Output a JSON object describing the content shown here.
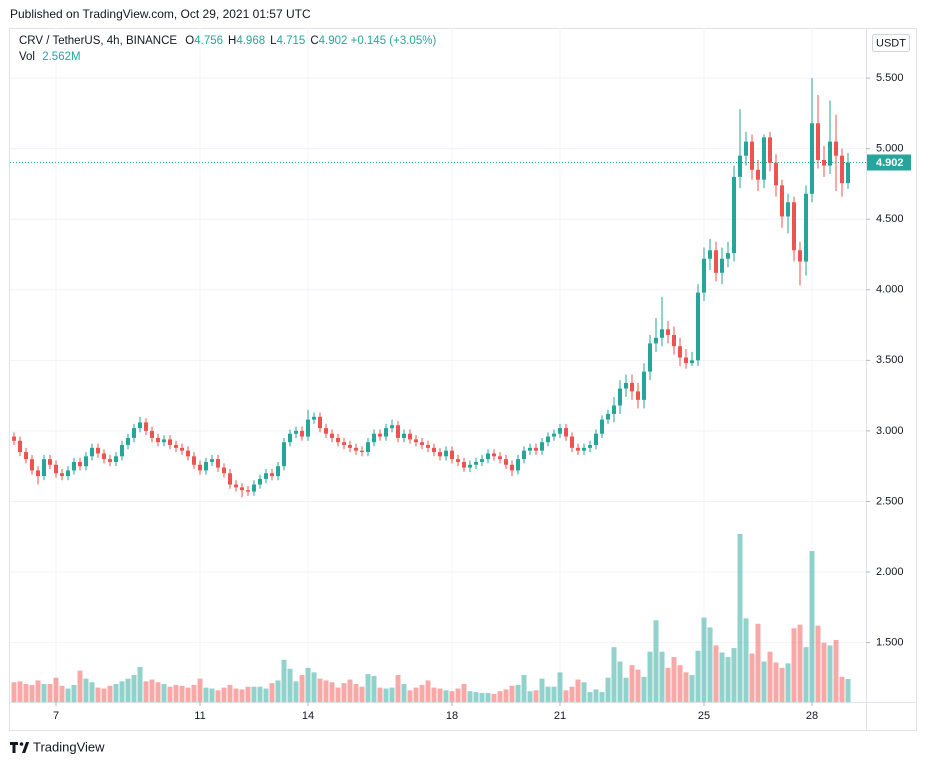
{
  "header": {
    "published": "Published on TradingView.com, Oct 29, 2021 01:57 UTC",
    "symbol": "CRV / TetherUS, 4h, BINANCE",
    "ohlc": [
      {
        "label": "O",
        "value": 4.756
      },
      {
        "label": "H",
        "value": 4.968
      },
      {
        "label": "L",
        "value": 4.715
      },
      {
        "label": "C",
        "value": 4.902
      }
    ],
    "change": "+0.145 (+3.05%)",
    "vol_label": "Vol",
    "vol_value": "2.562M",
    "currency": "USDT",
    "footer": "TradingView"
  },
  "chart_data": {
    "type": "candlestick",
    "up_color": "#26a69a",
    "down_color": "#ef5350",
    "grid": true,
    "categories": [
      null,
      null,
      null,
      null,
      null,
      null,
      null,
      "7",
      null,
      null,
      null,
      null,
      null,
      null,
      null,
      null,
      null,
      null,
      null,
      null,
      null,
      null,
      null,
      null,
      null,
      null,
      null,
      null,
      null,
      null,
      null,
      "11",
      null,
      null,
      null,
      null,
      null,
      null,
      null,
      null,
      null,
      null,
      null,
      null,
      null,
      null,
      null,
      null,
      null,
      "14",
      null,
      null,
      null,
      null,
      null,
      null,
      null,
      null,
      null,
      null,
      null,
      null,
      null,
      null,
      null,
      null,
      null,
      null,
      null,
      null,
      null,
      null,
      null,
      "18",
      null,
      null,
      null,
      null,
      null,
      null,
      null,
      null,
      null,
      null,
      null,
      null,
      null,
      null,
      null,
      null,
      null,
      "21",
      null,
      null,
      null,
      null,
      null,
      null,
      null,
      null,
      null,
      null,
      null,
      null,
      null,
      null,
      null,
      null,
      null,
      null,
      null,
      null,
      null,
      null,
      null,
      "25",
      null,
      null,
      null,
      null,
      null,
      null,
      null,
      null,
      null,
      null,
      null,
      null,
      null,
      null,
      null,
      null,
      null,
      "28",
      null,
      null,
      null,
      null,
      null,
      null
    ],
    "open": [
      2.96,
      2.93,
      2.85,
      2.8,
      2.72,
      2.68,
      2.8,
      2.76,
      2.7,
      2.68,
      2.72,
      2.78,
      2.75,
      2.82,
      2.88,
      2.84,
      2.8,
      2.78,
      2.82,
      2.9,
      2.95,
      3.02,
      3.06,
      3.0,
      2.95,
      2.92,
      2.94,
      2.9,
      2.88,
      2.86,
      2.82,
      2.76,
      2.72,
      2.78,
      2.8,
      2.74,
      2.7,
      2.62,
      2.6,
      2.58,
      2.57,
      2.62,
      2.66,
      2.7,
      2.68,
      2.75,
      2.92,
      2.98,
      3.0,
      2.96,
      3.08,
      3.1,
      3.02,
      2.98,
      2.95,
      2.92,
      2.9,
      2.88,
      2.86,
      2.85,
      2.92,
      2.98,
      2.96,
      3.02,
      3.04,
      2.95,
      2.98,
      2.94,
      2.92,
      2.9,
      2.88,
      2.85,
      2.82,
      2.86,
      2.8,
      2.78,
      2.74,
      2.76,
      2.78,
      2.8,
      2.84,
      2.82,
      2.8,
      2.76,
      2.72,
      2.8,
      2.86,
      2.88,
      2.86,
      2.92,
      2.96,
      2.98,
      3.02,
      2.96,
      2.88,
      2.86,
      2.88,
      2.9,
      2.98,
      3.08,
      3.12,
      3.18,
      3.3,
      3.34,
      3.28,
      3.22,
      3.42,
      3.62,
      3.66,
      3.72,
      3.68,
      3.6,
      3.52,
      3.48,
      3.5,
      3.98,
      4.22,
      4.28,
      4.12,
      4.22,
      4.26,
      4.8,
      4.95,
      5.05,
      4.85,
      4.78,
      5.08,
      4.9,
      4.74,
      4.52,
      4.62,
      4.28,
      4.2,
      4.68,
      5.18,
      4.92,
      4.88,
      5.05,
      4.95,
      4.756
    ],
    "high": [
      2.99,
      2.96,
      2.88,
      2.83,
      2.75,
      2.83,
      2.83,
      2.79,
      2.73,
      2.75,
      2.81,
      2.81,
      2.85,
      2.91,
      2.91,
      2.87,
      2.83,
      2.85,
      2.93,
      2.98,
      3.05,
      3.1,
      3.09,
      3.03,
      2.98,
      2.97,
      2.97,
      2.93,
      2.91,
      2.89,
      2.85,
      2.79,
      2.81,
      2.83,
      2.83,
      2.77,
      2.73,
      2.65,
      2.63,
      2.61,
      2.65,
      2.69,
      2.73,
      2.73,
      2.78,
      2.95,
      3.01,
      3.03,
      3.03,
      3.15,
      3.13,
      3.13,
      3.05,
      3.01,
      2.98,
      2.95,
      2.93,
      2.91,
      2.89,
      2.95,
      3.01,
      3.01,
      3.05,
      3.08,
      3.07,
      3.01,
      3.01,
      2.97,
      2.95,
      2.93,
      2.91,
      2.88,
      2.89,
      2.89,
      2.83,
      2.81,
      2.79,
      2.81,
      2.83,
      2.87,
      2.87,
      2.85,
      2.83,
      2.79,
      2.83,
      2.89,
      2.91,
      2.91,
      2.95,
      2.99,
      3.01,
      3.05,
      3.05,
      2.99,
      2.91,
      2.91,
      2.93,
      3.01,
      3.11,
      3.15,
      3.24,
      3.36,
      3.4,
      3.4,
      3.34,
      3.48,
      3.68,
      3.8,
      3.95,
      3.78,
      3.74,
      3.66,
      3.58,
      3.56,
      4.04,
      4.3,
      4.36,
      4.34,
      4.3,
      4.34,
      4.88,
      5.28,
      5.12,
      5.1,
      4.92,
      5.1,
      5.12,
      4.96,
      4.78,
      4.68,
      4.66,
      4.34,
      4.74,
      5.5,
      5.38,
      5.02,
      5.34,
      5.24,
      5.0,
      4.968
    ],
    "low": [
      2.9,
      2.82,
      2.77,
      2.69,
      2.62,
      2.65,
      2.73,
      2.67,
      2.65,
      2.65,
      2.69,
      2.72,
      2.72,
      2.79,
      2.81,
      2.77,
      2.75,
      2.75,
      2.79,
      2.87,
      2.92,
      2.99,
      2.97,
      2.92,
      2.89,
      2.89,
      2.87,
      2.85,
      2.83,
      2.79,
      2.73,
      2.69,
      2.69,
      2.75,
      2.71,
      2.67,
      2.59,
      2.57,
      2.53,
      2.54,
      2.54,
      2.59,
      2.63,
      2.65,
      2.65,
      2.72,
      2.89,
      2.95,
      2.93,
      2.93,
      3.05,
      2.99,
      2.95,
      2.92,
      2.89,
      2.87,
      2.85,
      2.83,
      2.82,
      2.82,
      2.89,
      2.93,
      2.93,
      2.99,
      2.92,
      2.92,
      2.91,
      2.89,
      2.87,
      2.85,
      2.82,
      2.79,
      2.79,
      2.77,
      2.75,
      2.71,
      2.71,
      2.73,
      2.75,
      2.77,
      2.79,
      2.77,
      2.73,
      2.68,
      2.69,
      2.77,
      2.83,
      2.83,
      2.83,
      2.89,
      2.93,
      2.95,
      2.93,
      2.85,
      2.83,
      2.83,
      2.85,
      2.87,
      2.95,
      3.05,
      3.06,
      3.12,
      3.24,
      3.22,
      3.16,
      3.16,
      3.36,
      3.56,
      3.6,
      3.62,
      3.54,
      3.46,
      3.44,
      3.46,
      3.46,
      3.92,
      4.14,
      4.06,
      4.04,
      4.16,
      4.2,
      4.72,
      4.88,
      4.78,
      4.7,
      4.72,
      4.84,
      4.66,
      4.44,
      4.4,
      4.2,
      4.03,
      4.1,
      4.62,
      4.86,
      4.8,
      4.82,
      4.7,
      4.66,
      4.715
    ],
    "close": [
      2.93,
      2.85,
      2.8,
      2.72,
      2.68,
      2.8,
      2.76,
      2.7,
      2.68,
      2.72,
      2.78,
      2.75,
      2.82,
      2.88,
      2.84,
      2.8,
      2.78,
      2.82,
      2.9,
      2.95,
      3.02,
      3.06,
      3.0,
      2.95,
      2.92,
      2.94,
      2.9,
      2.88,
      2.86,
      2.82,
      2.76,
      2.72,
      2.78,
      2.8,
      2.74,
      2.7,
      2.62,
      2.6,
      2.58,
      2.57,
      2.62,
      2.66,
      2.7,
      2.68,
      2.75,
      2.92,
      2.98,
      3.0,
      2.96,
      3.08,
      3.1,
      3.02,
      2.98,
      2.95,
      2.92,
      2.9,
      2.88,
      2.86,
      2.85,
      2.92,
      2.98,
      2.96,
      3.02,
      3.04,
      2.95,
      2.98,
      2.94,
      2.92,
      2.9,
      2.88,
      2.85,
      2.82,
      2.86,
      2.8,
      2.78,
      2.74,
      2.76,
      2.78,
      2.8,
      2.84,
      2.82,
      2.8,
      2.76,
      2.72,
      2.8,
      2.86,
      2.88,
      2.86,
      2.92,
      2.96,
      2.98,
      3.02,
      2.96,
      2.88,
      2.86,
      2.88,
      2.9,
      2.98,
      3.08,
      3.12,
      3.18,
      3.3,
      3.34,
      3.28,
      3.22,
      3.42,
      3.62,
      3.66,
      3.72,
      3.68,
      3.6,
      3.52,
      3.48,
      3.5,
      3.98,
      4.22,
      4.28,
      4.12,
      4.22,
      4.26,
      4.8,
      4.95,
      5.05,
      4.85,
      4.78,
      5.08,
      4.9,
      4.74,
      4.52,
      4.62,
      4.28,
      4.2,
      4.68,
      5.18,
      4.92,
      4.88,
      5.05,
      4.95,
      4.756,
      4.902
    ],
    "volume": [
      2.2,
      2.3,
      2.0,
      1.9,
      2.4,
      2.0,
      2.0,
      2.7,
      1.8,
      1.5,
      1.9,
      3.5,
      2.6,
      2.2,
      1.6,
      1.5,
      1.8,
      2.0,
      2.3,
      2.6,
      3.0,
      3.9,
      2.3,
      2.5,
      2.2,
      2.0,
      1.7,
      1.9,
      1.8,
      1.6,
      1.9,
      2.6,
      1.6,
      1.5,
      1.3,
      1.6,
      1.9,
      1.5,
      1.4,
      1.7,
      1.7,
      1.7,
      1.5,
      2.1,
      2.4,
      4.7,
      3.7,
      2.3,
      3.0,
      3.8,
      3.3,
      2.6,
      2.4,
      2.2,
      1.6,
      2.1,
      2.5,
      2.0,
      1.7,
      3.1,
      2.9,
      1.6,
      1.5,
      1.6,
      3.0,
      2.0,
      1.3,
      1.6,
      1.9,
      2.4,
      1.6,
      1.5,
      1.3,
      1.2,
      1.5,
      2.0,
      1.2,
      1.1,
      1.0,
      1.0,
      0.9,
      1.2,
      1.4,
      1.8,
      1.9,
      3.0,
      1.2,
      1.3,
      2.6,
      1.7,
      1.7,
      3.3,
      1.3,
      1.7,
      2.5,
      2.2,
      1.1,
      1.4,
      1.1,
      2.7,
      6.1,
      4.5,
      2.7,
      4.1,
      3.6,
      2.8,
      5.6,
      9.1,
      5.6,
      3.8,
      5.0,
      4.1,
      3.3,
      3.0,
      5.7,
      9.4,
      8.3,
      6.3,
      5.5,
      5.0,
      6.0,
      18.7,
      9.3,
      5.4,
      8.7,
      4.5,
      5.6,
      4.4,
      3.8,
      4.3,
      8.2,
      8.6,
      6.1,
      16.8,
      8.5,
      6.6,
      6.3,
      6.9,
      2.8,
      2.562
    ],
    "ylim": [
      1.079,
      5.855
    ],
    "volume_ylim": [
      0,
      75
    ],
    "yticks": [
      {
        "value": 1.5,
        "label": "1.500"
      },
      {
        "value": 2,
        "label": "2.000"
      },
      {
        "value": 2.5,
        "label": "2.500"
      },
      {
        "value": 3,
        "label": "3.000"
      },
      {
        "value": 3.5,
        "label": "3.500"
      },
      {
        "value": 4,
        "label": "4.000"
      },
      {
        "value": 4.5,
        "label": "4.500"
      },
      {
        "value": 5,
        "label": "5.000"
      },
      {
        "value": 5.5,
        "label": "5.500"
      }
    ]
  }
}
